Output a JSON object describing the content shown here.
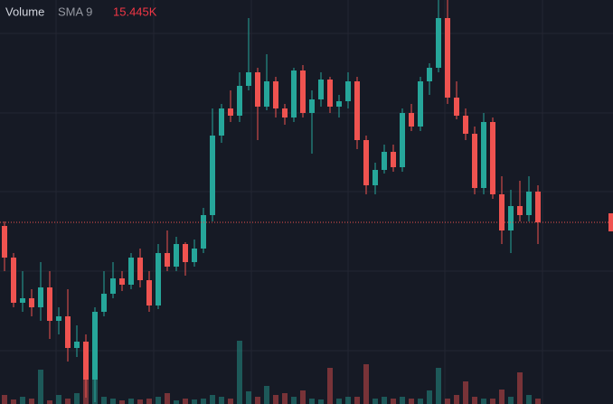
{
  "chart_data": {
    "type": "candlestick",
    "legend": {
      "name": "Volume",
      "study": "SMA 9",
      "value": "15.445K"
    },
    "up_color": "#26a69a",
    "down_color": "#ef5350",
    "ylim": [
      0,
      447
    ],
    "volume_ylim": [
      0,
      447
    ],
    "series": {
      "open": [
        197,
        162,
        112,
        117,
        107,
        129,
        92,
        97,
        62,
        69,
        27,
        102,
        122,
        139,
        132,
        162,
        137,
        109,
        167,
        152,
        177,
        157,
        172,
        209,
        297,
        327,
        319,
        352,
        367,
        329,
        357,
        327,
        317,
        369,
        322,
        337,
        359,
        329,
        335,
        357,
        292,
        242,
        259,
        279,
        262,
        322,
        307,
        357,
        372,
        427,
        339,
        319,
        299,
        239,
        312,
        232,
        192,
        219,
        209,
        235
      ],
      "high": [
        202,
        167,
        147,
        127,
        157,
        147,
        107,
        127,
        87,
        77,
        107,
        147,
        157,
        147,
        167,
        172,
        147,
        177,
        192,
        185,
        179,
        182,
        217,
        327,
        332,
        347,
        367,
        427,
        372,
        387,
        362,
        332,
        372,
        375,
        347,
        367,
        362,
        342,
        367,
        362,
        297,
        267,
        287,
        287,
        327,
        332,
        362,
        377,
        447,
        447,
        357,
        327,
        307,
        322,
        317,
        252,
        237,
        247,
        252,
        242
      ],
      "low": [
        147,
        107,
        102,
        97,
        92,
        72,
        77,
        47,
        52,
        7,
        2,
        97,
        117,
        125,
        127,
        129,
        102,
        105,
        147,
        147,
        142,
        152,
        167,
        202,
        289,
        312,
        312,
        347,
        292,
        325,
        317,
        309,
        312,
        317,
        277,
        329,
        322,
        317,
        327,
        282,
        232,
        232,
        255,
        257,
        257,
        302,
        302,
        342,
        367,
        332,
        315,
        292,
        232,
        232,
        227,
        177,
        167,
        202,
        202,
        177
      ],
      "close": [
        162,
        112,
        117,
        107,
        129,
        92,
        97,
        62,
        69,
        27,
        102,
        122,
        139,
        132,
        162,
        137,
        109,
        167,
        152,
        177,
        157,
        172,
        209,
        297,
        327,
        319,
        352,
        367,
        329,
        357,
        327,
        317,
        369,
        322,
        337,
        359,
        329,
        335,
        357,
        292,
        242,
        259,
        279,
        262,
        322,
        307,
        357,
        372,
        427,
        339,
        319,
        299,
        239,
        312,
        232,
        192,
        219,
        209,
        235,
        201
      ],
      "volume": [
        10,
        5,
        8,
        6,
        38,
        4,
        10,
        6,
        12,
        30,
        45,
        8,
        6,
        4,
        6,
        5,
        6,
        8,
        12,
        4,
        6,
        5,
        6,
        10,
        8,
        6,
        70,
        14,
        8,
        20,
        10,
        12,
        8,
        15,
        6,
        5,
        40,
        6,
        8,
        8,
        44,
        6,
        8,
        6,
        8,
        6,
        6,
        15,
        40,
        6,
        10,
        25,
        8,
        6,
        6,
        16,
        8,
        35,
        10,
        6
      ]
    }
  }
}
